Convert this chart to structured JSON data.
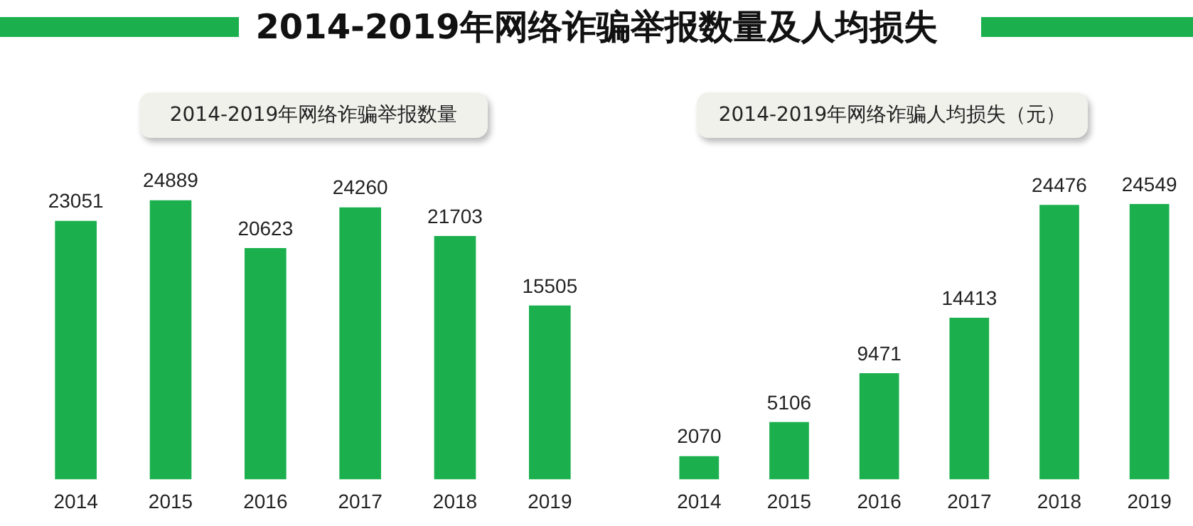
{
  "chart_data": [
    {
      "type": "other",
      "title": "2014-2019年网络诈骗举报数量及人均损失"
    },
    {
      "type": "bar",
      "subtitle": "2014-2019年网络诈骗举报数量",
      "categories": [
        "2014",
        "2015",
        "2016",
        "2017",
        "2018",
        "2019"
      ],
      "values": [
        23051,
        24889,
        20623,
        24260,
        21703,
        15505
      ],
      "color": "#1bb04d",
      "data_labels": true,
      "grid": false,
      "tick_labels": "x"
    },
    {
      "type": "bar",
      "subtitle": "2014-2019年网络诈骗人均损失（元）",
      "categories": [
        "2014",
        "2015",
        "2016",
        "2017",
        "2018",
        "2019"
      ],
      "values": [
        2070,
        5106,
        9471,
        14413,
        24476,
        24549
      ],
      "color": "#1bb04d",
      "data_labels": true,
      "grid": false,
      "tick_labels": "x"
    }
  ]
}
